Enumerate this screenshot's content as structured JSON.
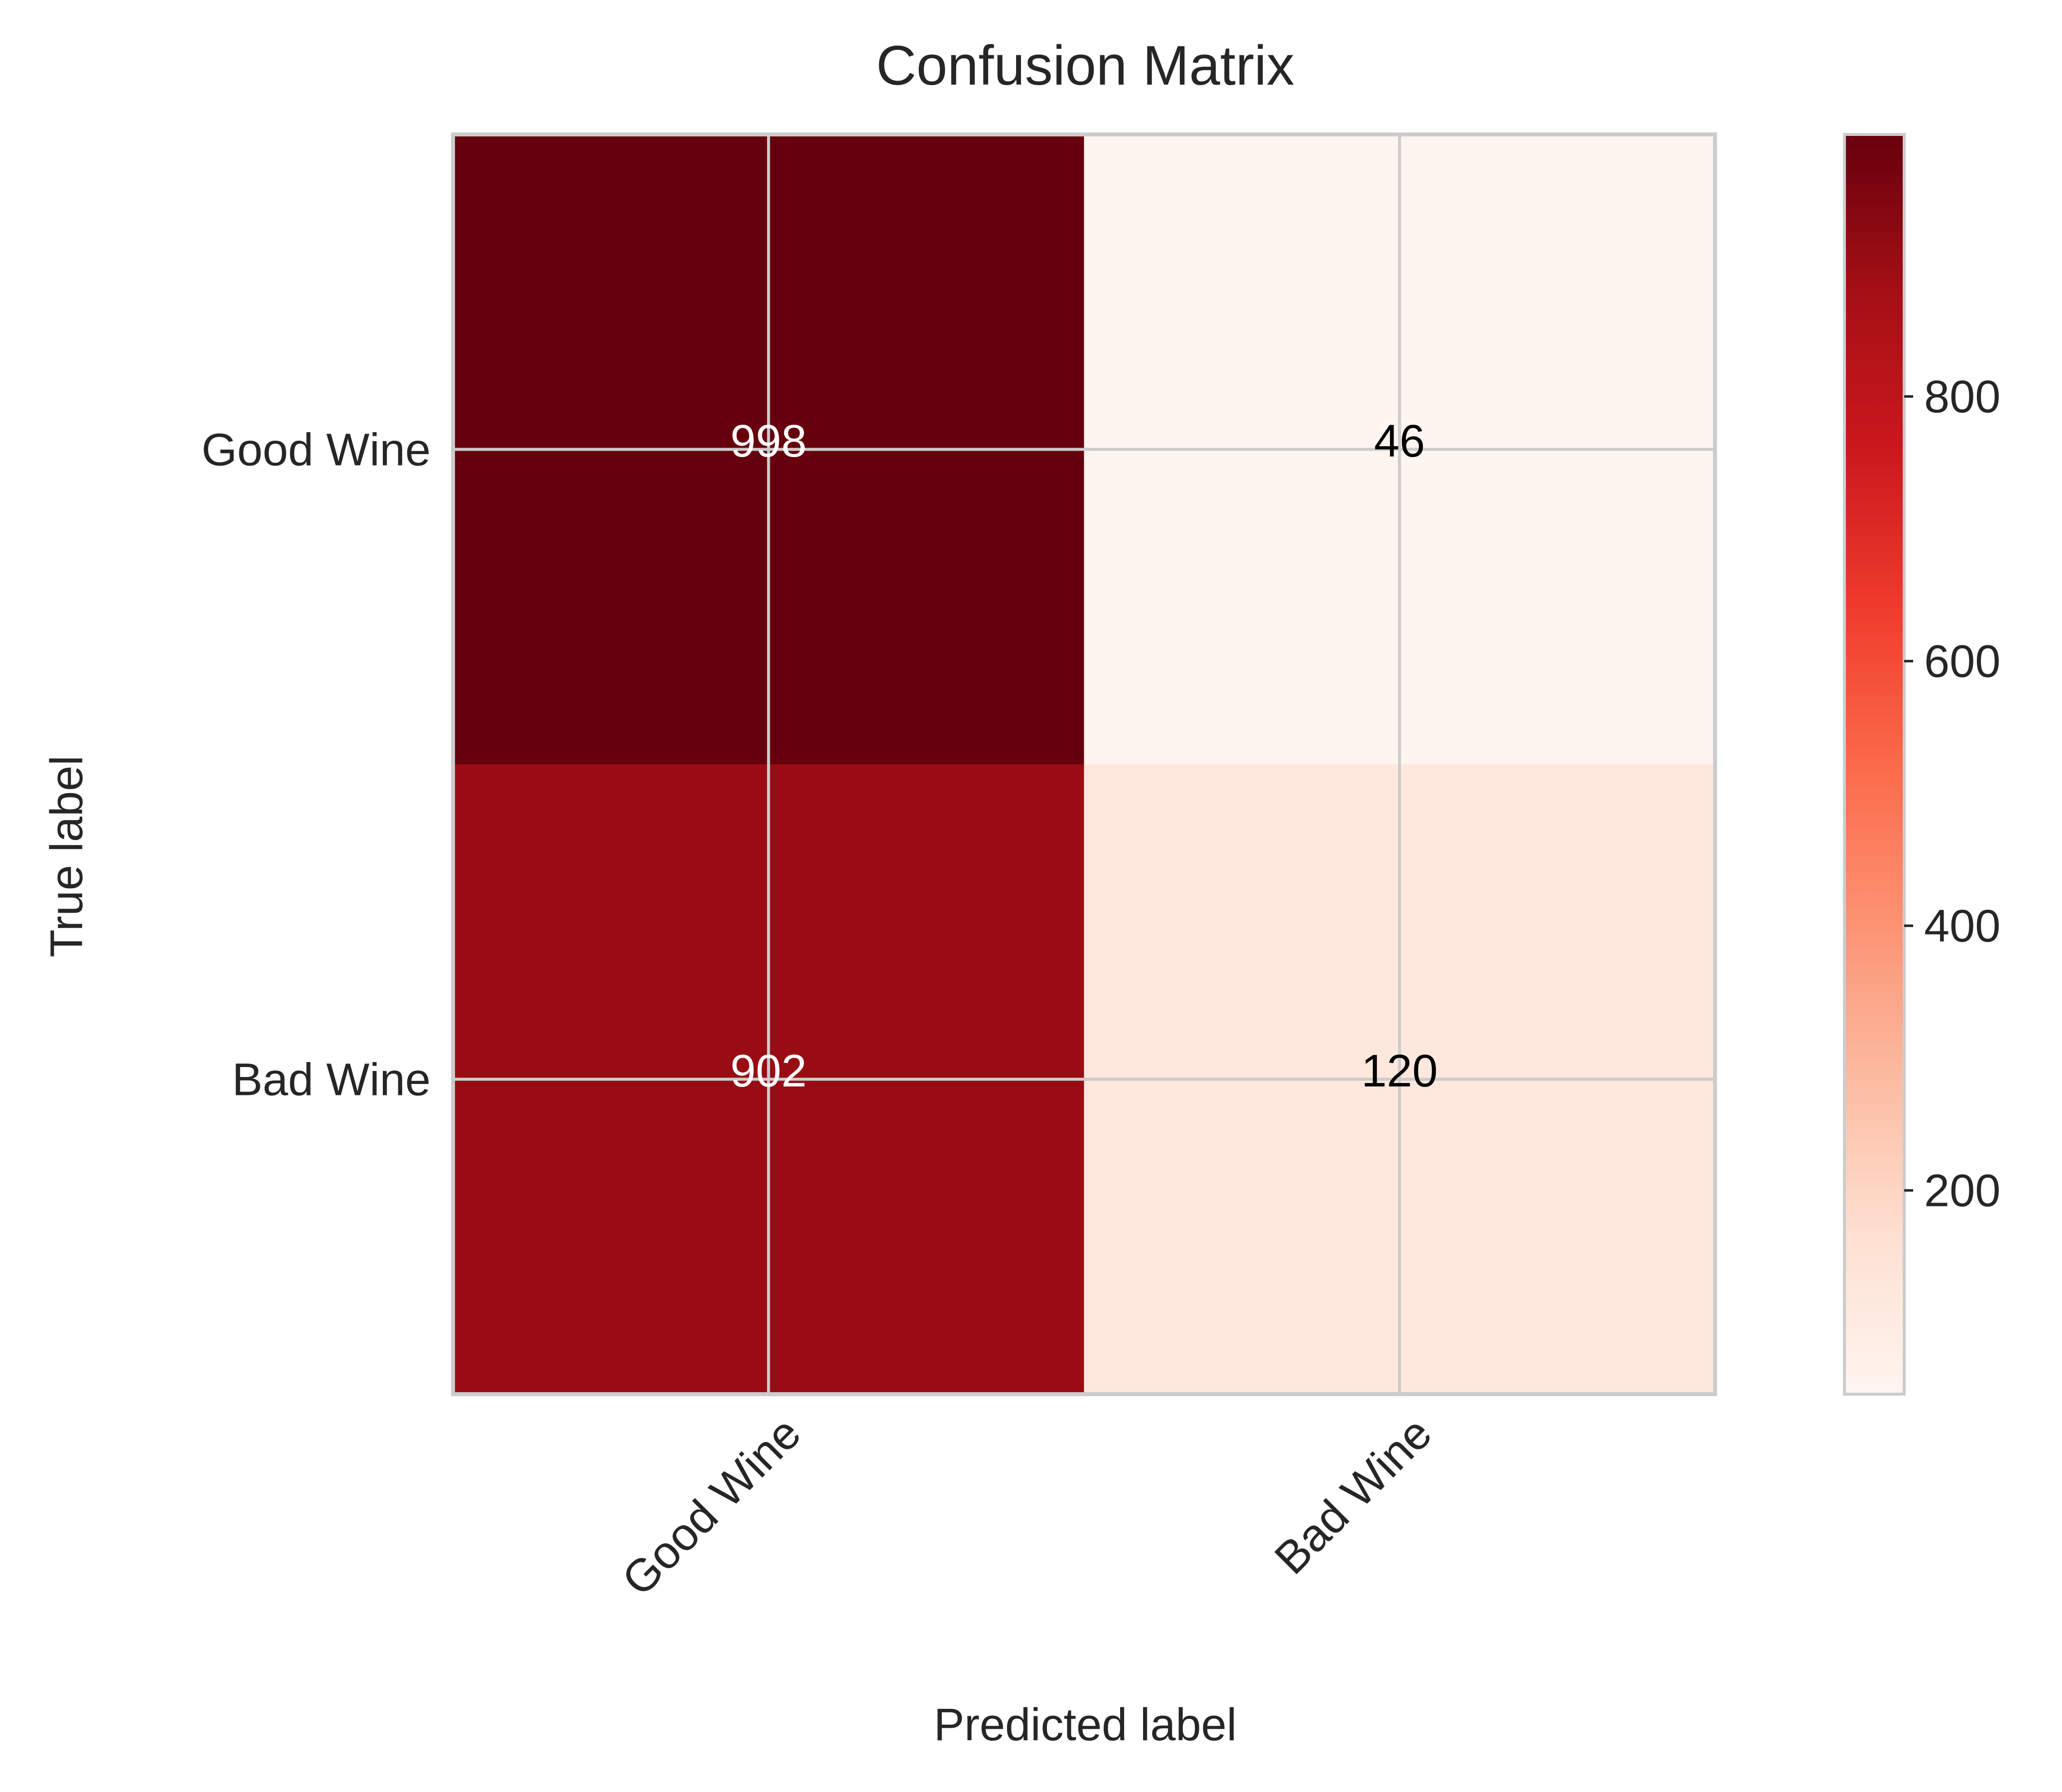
{
  "chart_data": {
    "type": "heatmap",
    "title": "Confusion Matrix",
    "xlabel": "Predicted label",
    "ylabel": "True label",
    "x_categories": [
      "Good Wine",
      "Bad Wine"
    ],
    "y_categories": [
      "Good Wine",
      "Bad Wine"
    ],
    "values": [
      [
        998,
        46
      ],
      [
        902,
        120
      ]
    ],
    "cell_labels": [
      [
        "998",
        "46"
      ],
      [
        "902",
        "120"
      ]
    ],
    "colormap": "Reds",
    "color_range": [
      46,
      998
    ],
    "colorbar": {
      "ticks": [
        200,
        400,
        600,
        800
      ],
      "tick_labels": [
        "200",
        "400",
        "600",
        "800"
      ]
    },
    "grid": true,
    "colors": {
      "grid": "#cccccc",
      "text_light": "#ffffff",
      "text_dark": "#000000",
      "axis_text": "#262626"
    }
  }
}
